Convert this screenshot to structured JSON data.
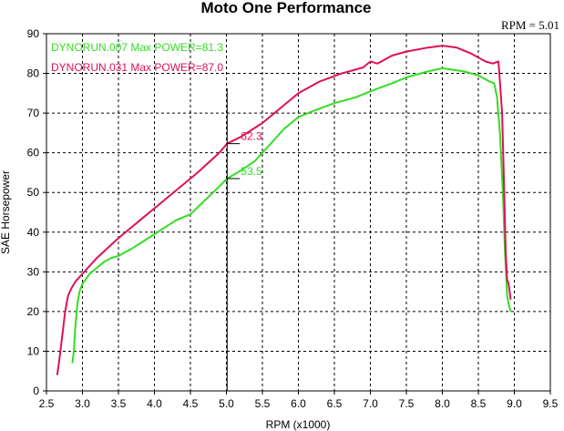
{
  "chart_data": {
    "type": "line",
    "title": "Moto One Performance",
    "xlabel": "RPM (x1000)",
    "ylabel": "SAE Horsepower",
    "xlim": [
      2.5,
      9.5
    ],
    "ylim": [
      0,
      90
    ],
    "xticks": [
      "2.5",
      "3.0",
      "3.5",
      "4.0",
      "4.5",
      "5.0",
      "5.5",
      "6.0",
      "6.5",
      "7.0",
      "7.5",
      "8.0",
      "8.5",
      "9.0",
      "9.5"
    ],
    "yticks": [
      "0",
      "10",
      "20",
      "30",
      "40",
      "50",
      "60",
      "70",
      "80",
      "90"
    ],
    "grid": true,
    "cursor": {
      "x": 5.01,
      "label": "RPM = 5.01"
    },
    "series": [
      {
        "name": "DYNORUN.007  Max POWER=81.3",
        "color": "#33dd22",
        "marker_value": "53.5",
        "x": [
          2.86,
          2.88,
          2.9,
          2.93,
          2.96,
          3.0,
          3.1,
          3.2,
          3.3,
          3.4,
          3.5,
          3.7,
          4.0,
          4.3,
          4.5,
          4.7,
          4.9,
          5.01,
          5.2,
          5.4,
          5.6,
          5.8,
          6.0,
          6.2,
          6.5,
          6.8,
          7.0,
          7.3,
          7.5,
          7.8,
          8.0,
          8.3,
          8.5,
          8.65,
          8.72,
          8.76,
          8.8,
          8.84,
          8.87,
          8.9,
          8.92,
          8.95
        ],
        "values": [
          7,
          10,
          16,
          22,
          25,
          27,
          29.5,
          31,
          32.5,
          33.5,
          34,
          36,
          39.5,
          43,
          44.5,
          48,
          51.5,
          53.5,
          55.5,
          58,
          62,
          66,
          69,
          70.5,
          72.5,
          74,
          75.5,
          77.5,
          79,
          80.5,
          81.3,
          80.5,
          79.5,
          78,
          77.5,
          74,
          65,
          50,
          35,
          24,
          22,
          20
        ]
      },
      {
        "name": "DYNORUN.031  Max POWER=87.0",
        "color": "#dd1155",
        "marker_value": "62.3",
        "x": [
          2.65,
          2.68,
          2.72,
          2.76,
          2.8,
          2.85,
          2.9,
          3.0,
          3.2,
          3.5,
          3.8,
          4.0,
          4.3,
          4.6,
          4.9,
          5.01,
          5.2,
          5.5,
          5.8,
          6.0,
          6.3,
          6.6,
          6.9,
          7.0,
          7.1,
          7.3,
          7.5,
          7.8,
          8.0,
          8.2,
          8.4,
          8.6,
          8.7,
          8.78,
          8.83,
          8.86,
          8.88,
          8.9,
          8.92,
          8.95
        ],
        "values": [
          4,
          8,
          14,
          20,
          24,
          26,
          27.5,
          29.5,
          33.5,
          38.5,
          43,
          46,
          50.5,
          55,
          60,
          62.3,
          64,
          67.5,
          72,
          75,
          78,
          80,
          81.5,
          83,
          82.5,
          84.5,
          85.5,
          86.5,
          87,
          86.5,
          85,
          83,
          82.5,
          83,
          70,
          50,
          35,
          28,
          27,
          23
        ]
      }
    ]
  }
}
